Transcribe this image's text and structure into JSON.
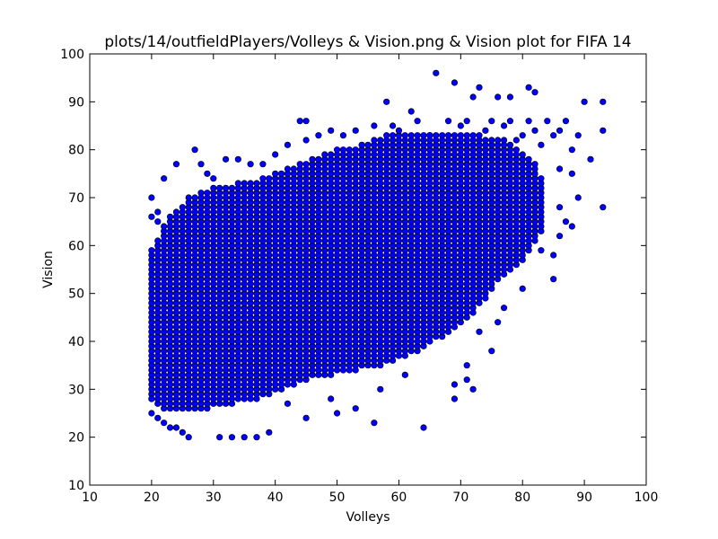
{
  "chart_data": {
    "type": "scatter",
    "title": "plots/14/outfieldPlayers/Volleys & Vision.png & Vision plot for FIFA 14",
    "xlabel": "Volleys",
    "ylabel": "Vision",
    "xlim": [
      10,
      100
    ],
    "ylim": [
      10,
      100
    ],
    "xticks": [
      "10",
      "20",
      "30",
      "40",
      "50",
      "60",
      "70",
      "80",
      "90",
      "100"
    ],
    "yticks": [
      "10",
      "20",
      "30",
      "40",
      "50",
      "60",
      "70",
      "80",
      "90",
      "100"
    ],
    "grid": false,
    "legend": "none",
    "marker_color": "#0000ff",
    "marker_edge_color": "#000000",
    "series": [
      {
        "points": [
          [
            66,
            96
          ],
          [
            69,
            94
          ],
          [
            73,
            93
          ],
          [
            81,
            93
          ],
          [
            82,
            92
          ],
          [
            72,
            91
          ],
          [
            76,
            91
          ],
          [
            78,
            91
          ],
          [
            90,
            90
          ],
          [
            93,
            90
          ],
          [
            58,
            90
          ],
          [
            62,
            88
          ],
          [
            44,
            86
          ],
          [
            45,
            86
          ],
          [
            56,
            85
          ],
          [
            59,
            85
          ],
          [
            63,
            86
          ],
          [
            68,
            86
          ],
          [
            78,
            86
          ],
          [
            84,
            86
          ],
          [
            87,
            86
          ],
          [
            93,
            84
          ],
          [
            82,
            84
          ],
          [
            86,
            84
          ],
          [
            89,
            83
          ],
          [
            85,
            83
          ],
          [
            80,
            83
          ],
          [
            88,
            80
          ],
          [
            91,
            78
          ],
          [
            86,
            76
          ],
          [
            88,
            75
          ],
          [
            89,
            70
          ],
          [
            93,
            68
          ],
          [
            86,
            68
          ],
          [
            87,
            65
          ],
          [
            88,
            64
          ],
          [
            85,
            58
          ],
          [
            86,
            62
          ],
          [
            83,
            59
          ],
          [
            79,
            58
          ],
          [
            85,
            53
          ],
          [
            80,
            51
          ],
          [
            77,
            47
          ],
          [
            76,
            44
          ],
          [
            73,
            42
          ],
          [
            75,
            38
          ],
          [
            72,
            30
          ],
          [
            71,
            32
          ],
          [
            71,
            35
          ],
          [
            69,
            31
          ],
          [
            69,
            28
          ],
          [
            64,
            22
          ],
          [
            56,
            23
          ],
          [
            61,
            33
          ],
          [
            57,
            30
          ],
          [
            53,
            26
          ],
          [
            50,
            25
          ],
          [
            49,
            28
          ],
          [
            45,
            24
          ],
          [
            42,
            27
          ],
          [
            39,
            21
          ],
          [
            37,
            20
          ],
          [
            35,
            20
          ],
          [
            33,
            20
          ],
          [
            31,
            20
          ],
          [
            26,
            20
          ],
          [
            25,
            21
          ],
          [
            24,
            22
          ],
          [
            23,
            22
          ],
          [
            22,
            23
          ],
          [
            21,
            24
          ],
          [
            20,
            25
          ],
          [
            20,
            28
          ],
          [
            20,
            32
          ],
          [
            20,
            35
          ],
          [
            27,
            80
          ],
          [
            28,
            77
          ],
          [
            24,
            77
          ],
          [
            32,
            78
          ],
          [
            29,
            75
          ],
          [
            30,
            74
          ],
          [
            22,
            74
          ],
          [
            20,
            70
          ],
          [
            20,
            66
          ],
          [
            21,
            65
          ],
          [
            22,
            64
          ],
          [
            21,
            67
          ],
          [
            34,
            78
          ],
          [
            36,
            77
          ],
          [
            38,
            77
          ],
          [
            40,
            79
          ],
          [
            42,
            81
          ],
          [
            45,
            82
          ],
          [
            47,
            83
          ],
          [
            49,
            84
          ],
          [
            51,
            83
          ],
          [
            53,
            84
          ],
          [
            60,
            84
          ],
          [
            65,
            83
          ],
          [
            70,
            85
          ],
          [
            74,
            84
          ],
          [
            77,
            85
          ],
          [
            79,
            82
          ],
          [
            83,
            81
          ],
          [
            81,
            86
          ],
          [
            75,
            86
          ],
          [
            71,
            86
          ]
        ],
        "band_fill": true,
        "band_outline": [
          [
            20,
            59
          ],
          [
            23,
            66
          ],
          [
            26,
            70
          ],
          [
            30,
            72
          ],
          [
            34,
            73
          ],
          [
            38,
            74
          ],
          [
            42,
            76
          ],
          [
            46,
            78
          ],
          [
            50,
            80
          ],
          [
            54,
            81
          ],
          [
            58,
            83
          ],
          [
            62,
            84
          ],
          [
            66,
            84
          ],
          [
            70,
            84
          ],
          [
            74,
            83
          ],
          [
            78,
            82
          ],
          [
            82,
            78
          ],
          [
            84,
            72
          ],
          [
            84,
            64
          ],
          [
            82,
            60
          ],
          [
            79,
            55
          ],
          [
            76,
            52
          ],
          [
            73,
            47
          ],
          [
            70,
            43
          ],
          [
            66,
            40
          ],
          [
            62,
            37
          ],
          [
            58,
            35
          ],
          [
            54,
            34
          ],
          [
            50,
            33
          ],
          [
            46,
            32
          ],
          [
            42,
            30
          ],
          [
            38,
            28
          ],
          [
            34,
            27
          ],
          [
            30,
            26
          ],
          [
            26,
            25
          ],
          [
            22,
            26
          ],
          [
            20,
            28
          ]
        ]
      }
    ]
  }
}
